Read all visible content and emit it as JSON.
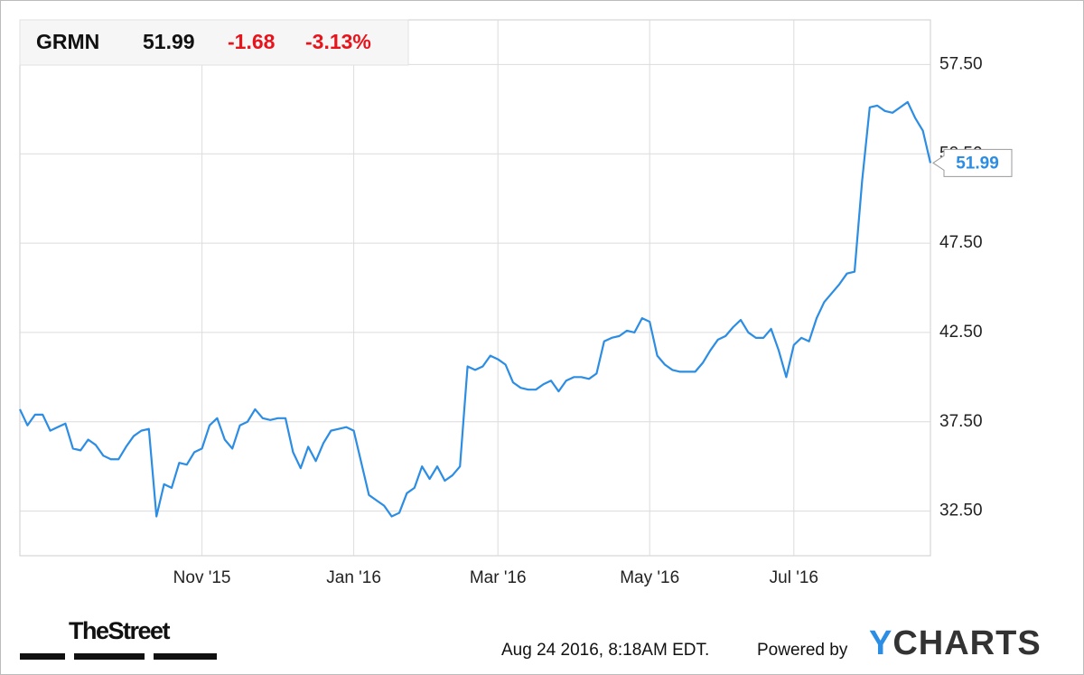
{
  "header": {
    "ticker": "GRMN",
    "price": "51.99",
    "change": "-1.68",
    "change_pct": "-3.13%"
  },
  "chart_data": {
    "type": "line",
    "color": "#2b8de3",
    "grid": true,
    "categories": [
      null,
      null,
      null,
      null,
      null,
      null,
      null,
      null,
      null,
      null,
      null,
      null,
      null,
      null,
      null,
      null,
      null,
      null,
      null,
      null,
      null,
      null,
      null,
      null,
      "Nov '15",
      null,
      null,
      null,
      null,
      null,
      null,
      null,
      null,
      null,
      null,
      null,
      null,
      null,
      null,
      null,
      null,
      null,
      null,
      null,
      "Jan '16",
      null,
      null,
      null,
      null,
      null,
      null,
      null,
      null,
      null,
      null,
      null,
      null,
      null,
      null,
      null,
      null,
      null,
      null,
      "Mar '16",
      null,
      null,
      null,
      null,
      null,
      null,
      null,
      null,
      null,
      null,
      null,
      null,
      null,
      null,
      null,
      null,
      null,
      null,
      null,
      "May '16",
      null,
      null,
      null,
      null,
      null,
      null,
      null,
      null,
      null,
      null,
      null,
      null,
      null,
      null,
      null,
      null,
      null,
      null,
      "Jul '16",
      null,
      null,
      null,
      null,
      null,
      null,
      null,
      null,
      null,
      null,
      null,
      null,
      null,
      null,
      null,
      null,
      null,
      null
    ],
    "values": [
      38.2,
      37.3,
      37.9,
      37.9,
      37.0,
      37.2,
      37.4,
      36.0,
      35.9,
      36.5,
      36.2,
      35.6,
      35.4,
      35.4,
      36.1,
      36.7,
      37.0,
      37.1,
      32.2,
      34.0,
      33.8,
      35.2,
      35.1,
      35.8,
      36.0,
      37.3,
      37.7,
      36.5,
      36.0,
      37.3,
      37.5,
      38.2,
      37.7,
      37.6,
      37.7,
      37.7,
      35.8,
      34.9,
      36.1,
      35.3,
      36.3,
      37.0,
      37.1,
      37.2,
      37.0,
      35.2,
      33.4,
      33.1,
      32.8,
      32.2,
      32.4,
      33.5,
      33.8,
      35.0,
      34.3,
      35.0,
      34.2,
      34.5,
      35.0,
      40.6,
      40.4,
      40.6,
      41.2,
      41.0,
      40.7,
      39.7,
      39.4,
      39.3,
      39.3,
      39.6,
      39.8,
      39.2,
      39.8,
      40.0,
      40.0,
      39.9,
      40.2,
      42.0,
      42.2,
      42.3,
      42.6,
      42.5,
      43.3,
      43.1,
      41.2,
      40.7,
      40.4,
      40.3,
      40.3,
      40.3,
      40.8,
      41.5,
      42.1,
      42.3,
      42.8,
      43.2,
      42.5,
      42.2,
      42.2,
      42.7,
      41.5,
      40.0,
      41.8,
      42.2,
      42.0,
      43.3,
      44.2,
      44.7,
      45.2,
      45.8,
      45.9,
      51.0,
      55.1,
      55.2,
      54.9,
      54.8,
      55.1,
      55.4,
      54.5,
      53.8,
      51.99
    ],
    "ylim": [
      30,
      60
    ],
    "yticks": [
      {
        "value": 32.5,
        "label": "32.50"
      },
      {
        "value": 37.5,
        "label": "37.50"
      },
      {
        "value": 42.5,
        "label": "42.50"
      },
      {
        "value": 47.5,
        "label": "47.50"
      },
      {
        "value": 52.5,
        "label": "52.50"
      },
      {
        "value": 57.5,
        "label": "57.50"
      }
    ]
  },
  "footer": {
    "source": "TheStreet",
    "timestamp": "Aug 24 2016, 8:18AM EDT.",
    "powered": "Powered by",
    "brand": "YCHARTS"
  }
}
